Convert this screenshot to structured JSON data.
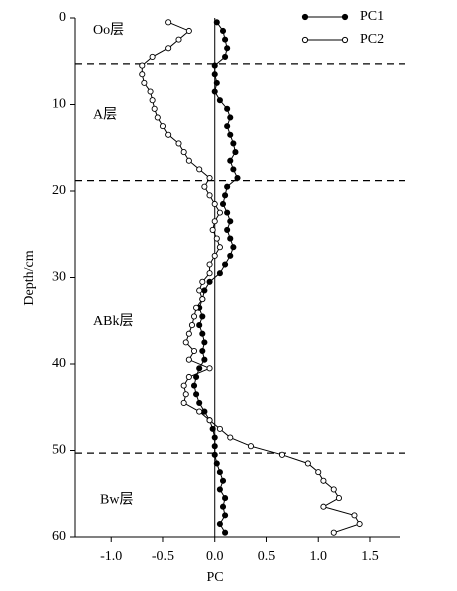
{
  "chart_data": {
    "type": "line",
    "x_label": "PC",
    "y_label": "Depth/cm",
    "xlim": [
      -1.35,
      1.79
    ],
    "xticks": [
      {
        "value": -1,
        "label": "-1.0"
      },
      {
        "value": -0.5,
        "label": "-0.5"
      },
      {
        "value": 0,
        "label": "0.0"
      },
      {
        "value": 0.5,
        "label": "0.5"
      },
      {
        "value": 1,
        "label": "1.0"
      },
      {
        "value": 1.5,
        "label": "1.5"
      }
    ],
    "ylim": [
      0,
      60
    ],
    "yticks": [
      0,
      10,
      20,
      30,
      40,
      50,
      60
    ],
    "y_inverted": true,
    "boundaries": [
      5.3,
      18.8,
      50.3
    ],
    "layers": [
      "Oo层",
      "A层",
      "ABk层",
      "Bw层"
    ],
    "y": [
      0.5,
      1.5,
      2.5,
      3.5,
      4.5,
      5.5,
      6.5,
      7.5,
      8.5,
      9.5,
      10.5,
      11.5,
      12.5,
      13.5,
      14.5,
      15.5,
      16.5,
      17.5,
      18.5,
      19.5,
      20.5,
      21.5,
      22.5,
      23.5,
      24.5,
      25.5,
      26.5,
      27.5,
      28.5,
      29.5,
      30.5,
      31.5,
      32.5,
      33.5,
      34.5,
      35.5,
      36.5,
      37.5,
      38.5,
      39.5,
      40.5,
      41.5,
      42.5,
      43.5,
      44.5,
      45.5,
      46.5,
      47.5,
      48.5,
      49.5,
      50.5,
      51.5,
      52.5,
      53.5,
      54.5,
      55.5,
      56.5,
      57.5,
      58.5,
      59.5
    ],
    "series": [
      {
        "name": "PC1",
        "color": "#000000",
        "marker_fill": "#000000",
        "values": [
          0.02,
          0.08,
          0.1,
          0.12,
          0.1,
          0.0,
          0.0,
          0.02,
          0.0,
          0.05,
          0.12,
          0.15,
          0.12,
          0.15,
          0.18,
          0.2,
          0.15,
          0.18,
          0.22,
          0.12,
          0.1,
          0.08,
          0.12,
          0.15,
          0.12,
          0.15,
          0.18,
          0.15,
          0.1,
          0.05,
          -0.05,
          -0.1,
          -0.12,
          -0.15,
          -0.12,
          -0.15,
          -0.12,
          -0.1,
          -0.12,
          -0.1,
          -0.15,
          -0.18,
          -0.2,
          -0.18,
          -0.15,
          -0.1,
          -0.05,
          -0.02,
          0.0,
          0.0,
          0.0,
          0.02,
          0.05,
          0.08,
          0.05,
          0.1,
          0.08,
          0.1,
          0.05,
          0.1
        ]
      },
      {
        "name": "PC2",
        "color": "#000000",
        "marker_fill": "#ffffff",
        "values": [
          -0.45,
          -0.25,
          -0.35,
          -0.45,
          -0.6,
          -0.7,
          -0.7,
          -0.68,
          -0.62,
          -0.6,
          -0.58,
          -0.55,
          -0.5,
          -0.45,
          -0.35,
          -0.3,
          -0.25,
          -0.15,
          -0.05,
          -0.1,
          -0.05,
          0.0,
          0.05,
          0.0,
          -0.02,
          0.02,
          0.05,
          0.0,
          -0.05,
          -0.05,
          -0.12,
          -0.15,
          -0.12,
          -0.18,
          -0.2,
          -0.22,
          -0.25,
          -0.28,
          -0.2,
          -0.25,
          -0.05,
          -0.25,
          -0.3,
          -0.28,
          -0.3,
          -0.15,
          -0.05,
          0.05,
          0.15,
          0.35,
          0.65,
          0.9,
          1.0,
          1.05,
          1.15,
          1.2,
          1.05,
          1.35,
          1.4,
          1.15
        ]
      }
    ]
  }
}
